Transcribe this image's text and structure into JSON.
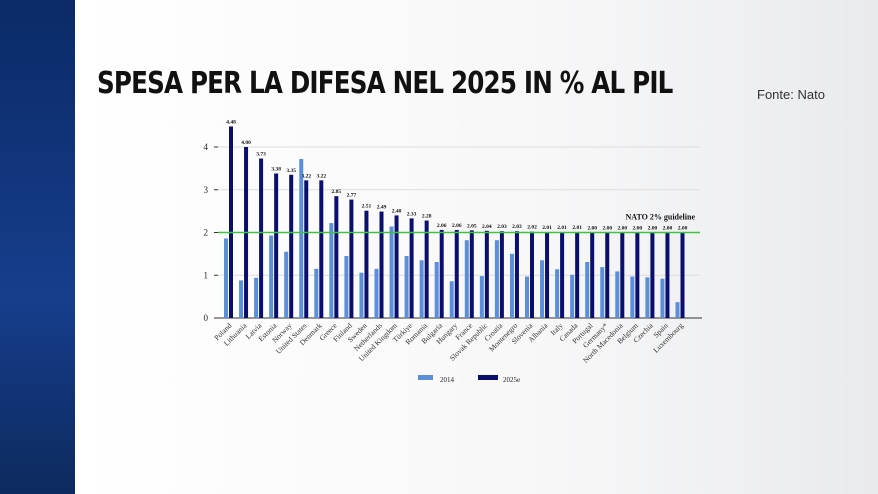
{
  "title": "SPESA PER LA DIFESA NEL 2025 IN % AL PIL",
  "source": "Fonte: Nato",
  "chart_data": {
    "type": "bar",
    "title": "SPESA PER LA DIFESA NEL 2025 IN % AL PIL",
    "categories": [
      "Poland",
      "Lithuania",
      "Latvia",
      "Estonia",
      "Norway",
      "United States",
      "Denmark",
      "Greece",
      "Finland",
      "Sweden",
      "Netherlands",
      "United Kingdom",
      "Türkiye",
      "Romania",
      "Bulgaria",
      "Hungary",
      "France",
      "Slovak Republic",
      "Croatia",
      "Montenegro",
      "Slovenia",
      "Albania",
      "Italy",
      "Canada",
      "Portugal",
      "Germany*",
      "North Macedonia",
      "Belgium",
      "Czechia",
      "Spain",
      "Luxembourg"
    ],
    "series": [
      {
        "name": "2014",
        "color": "#5b8fd9",
        "values": [
          1.86,
          0.88,
          0.94,
          1.93,
          1.55,
          3.72,
          1.15,
          2.22,
          1.45,
          1.06,
          1.15,
          2.14,
          1.45,
          1.35,
          1.31,
          0.86,
          1.82,
          0.98,
          1.82,
          1.5,
          0.97,
          1.35,
          1.14,
          1.01,
          1.31,
          1.19,
          1.09,
          0.97,
          0.95,
          0.92,
          0.37
        ]
      },
      {
        "name": "2025e",
        "color": "#0a0f6e",
        "values": [
          4.48,
          4.0,
          3.73,
          3.38,
          3.35,
          3.22,
          3.22,
          2.85,
          2.77,
          2.51,
          2.49,
          2.4,
          2.33,
          2.28,
          2.06,
          2.06,
          2.05,
          2.04,
          2.03,
          2.03,
          2.02,
          2.01,
          2.01,
          2.01,
          2.0,
          2.0,
          2.0,
          2.0,
          2.0,
          2.0,
          2.0
        ],
        "labels": [
          "4.48",
          "4.00",
          "3.73",
          "3.38",
          "3.35",
          "3.22",
          "3.22",
          "2.85",
          "2.77",
          "2.51",
          "2.49",
          "2.40",
          "2.33",
          "2.28",
          "2.06",
          "2.06",
          "2.05",
          "2.04",
          "2.03",
          "2.03",
          "2.02",
          "2.01",
          "2.01",
          "2.01",
          "2.00",
          "2.00",
          "2.00",
          "2.00",
          "2.00",
          "2.00",
          "2.00"
        ]
      }
    ],
    "yticks": [
      "0",
      "1",
      "2",
      "3",
      "4"
    ],
    "ylim": [
      0,
      4.6
    ],
    "guideline": {
      "value": 2,
      "label": "NATO 2% guideline",
      "color": "#3cc43c"
    },
    "legend": "bottom-center"
  }
}
